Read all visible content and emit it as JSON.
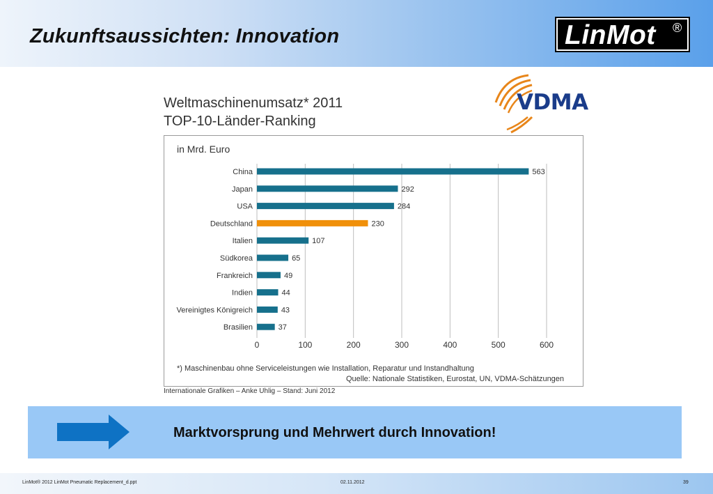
{
  "slide": {
    "title": "Zukunftsaussichten: Innovation",
    "logo": {
      "text": "LinMot",
      "mark": "®"
    },
    "banner_text": "Marktvorsprung und Mehrwert durch Innovation!",
    "banner_icon": "right-arrow-icon",
    "colors": {
      "header_blue": "#5aa0ea",
      "banner": "#99c8f6",
      "bar": "#16708c",
      "highlight": "#f0900a"
    }
  },
  "chart_header": {
    "title_line1": "Weltmaschinenumsatz* 2011",
    "title_line2": "TOP-10-Länder-Ranking",
    "vdma_logo": "VDMA"
  },
  "chart_notes": {
    "footnote": "*) Maschinenbau ohne Serviceleistungen  wie Installation, Reparatur und Instandhaltung",
    "source": "Quelle: Nationale Statistiken, Eurostat, UN, VDMA-Schätzungen",
    "credit": "Internationale Grafiken – Anke Uhlig – Stand: Juni 2012"
  },
  "chart_data": {
    "type": "bar",
    "orientation": "horizontal",
    "title": "Weltmaschinenumsatz* 2011",
    "subtitle": "TOP-10-Länder-Ranking",
    "unit_label": "in Mrd. Euro",
    "categories": [
      "China",
      "Japan",
      "USA",
      "Deutschland",
      "Italien",
      "Südkorea",
      "Frankreich",
      "Indien",
      "Vereinigtes Königreich",
      "Brasilien"
    ],
    "values": [
      563,
      292,
      284,
      230,
      107,
      65,
      49,
      44,
      43,
      37
    ],
    "highlight": "Deutschland",
    "xlim": [
      0,
      600
    ],
    "xticks": [
      0,
      100,
      200,
      300,
      400,
      500,
      600
    ],
    "grid": true
  },
  "footer": {
    "left": "LinMot® 2012  LinMot Pneumatic Replacement_d.ppt",
    "date": "02.11.2012",
    "page": "39"
  }
}
